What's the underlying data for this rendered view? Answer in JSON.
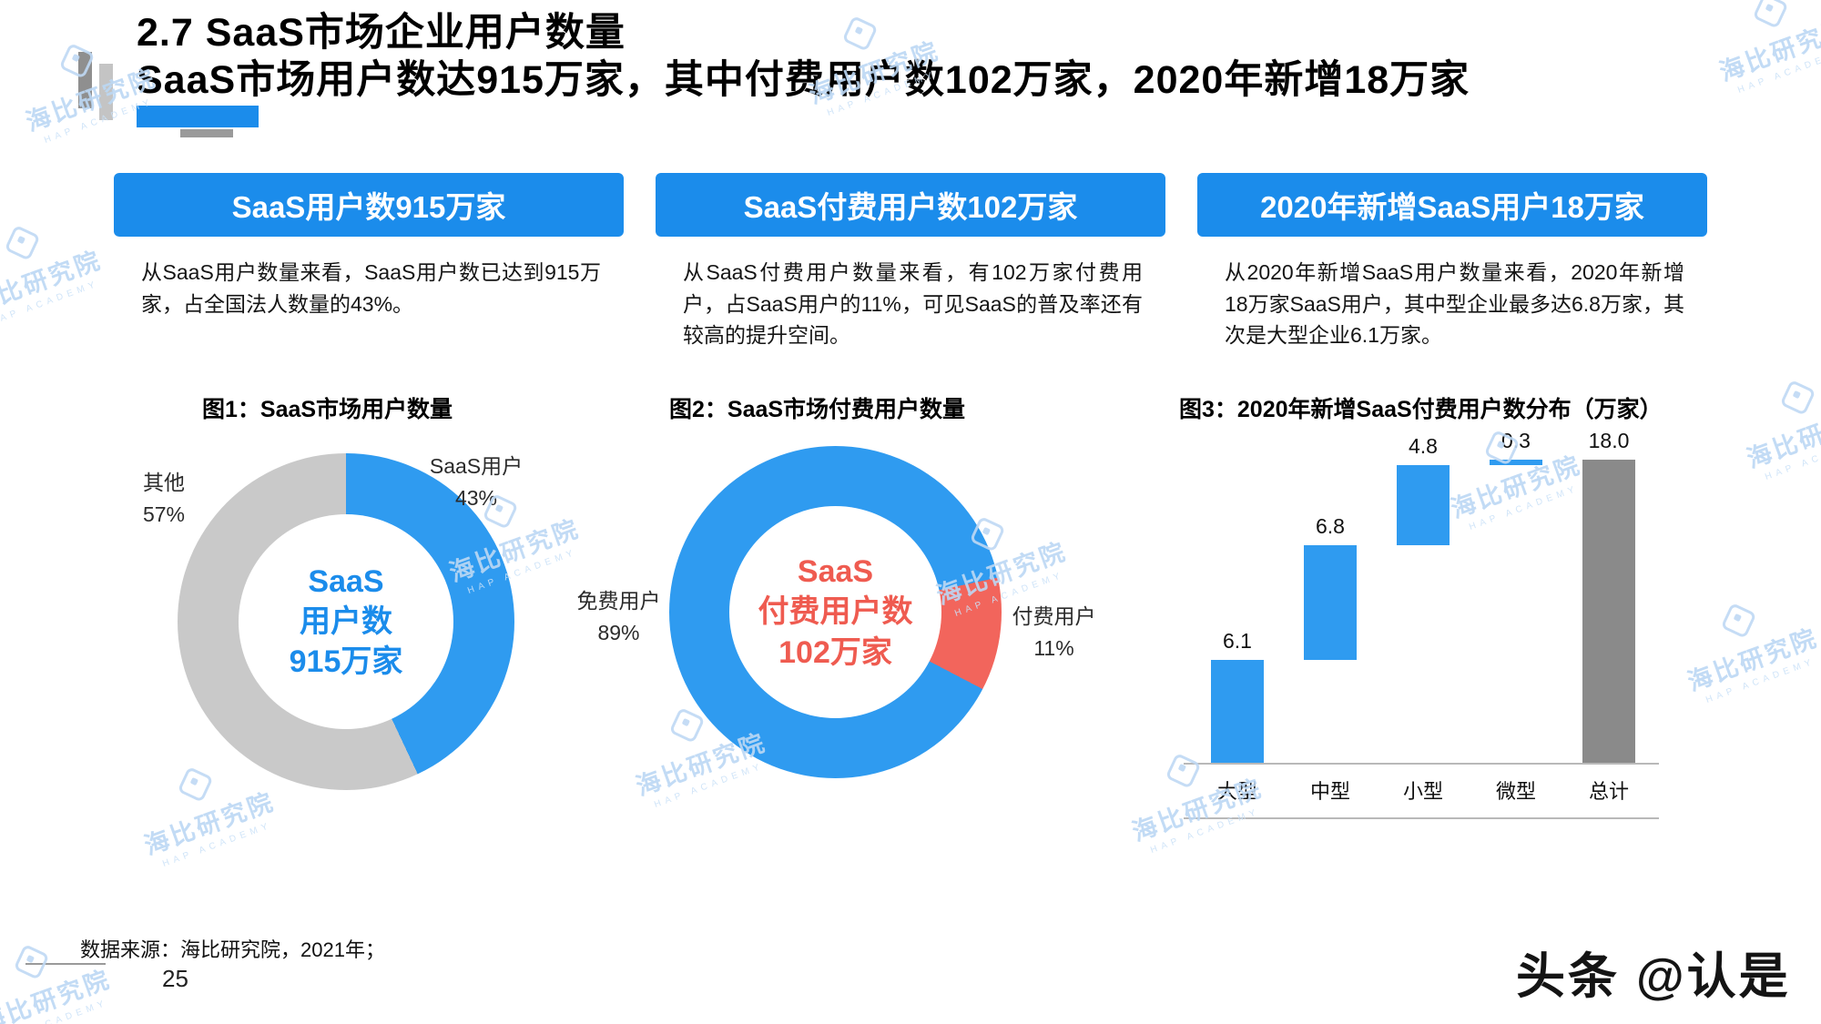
{
  "page": {
    "title_line1": "2.7 SaaS市场企业用户数量",
    "title_line2": "SaaS市场用户数达915万家，其中付费用户数102万家，2020年新增18万家",
    "footer_source": "数据来源：海比研究院，2021年；",
    "page_number": "25",
    "credit": "头条 @认是"
  },
  "watermark": {
    "text": "海比研究院",
    "sub": "HAP ACADEMY"
  },
  "columns": [
    {
      "header": "SaaS用户数915万家",
      "body": "从SaaS用户数量来看，SaaS用户数已达到915万家，占全国法人数量的43%。"
    },
    {
      "header": "SaaS付费用户数102万家",
      "body": "从SaaS付费用户数量来看，有102万家付费用户，占SaaS用户的11%，可见SaaS的普及率还有较高的提升空间。"
    },
    {
      "header": "2020年新增SaaS用户18万家",
      "body": "从2020年新增SaaS用户数量来看，2020年新增18万家SaaS用户，其中型企业最多达6.8万家，其次是大型企业6.1万家。"
    }
  ],
  "theme": {
    "accent_blue": "#2F9BF0",
    "header_blue": "#1B8CEB",
    "coral": "#F2655C",
    "gray_segment": "#C9C9C9",
    "bar_gray": "#8A8A8A"
  },
  "chart_data": [
    {
      "type": "pie",
      "subtype": "donut",
      "title": "图1：SaaS市场用户数量",
      "center_lines": [
        "SaaS",
        "用户数",
        "915万家"
      ],
      "center_color": "#1B8CEB",
      "start_angle_deg": 0,
      "segments": [
        {
          "label": "SaaS用户",
          "value_pct": 43,
          "pct_label": "43%",
          "color": "#2F9BF0"
        },
        {
          "label": "其他",
          "value_pct": 57,
          "pct_label": "57%",
          "color": "#C9C9C9"
        }
      ]
    },
    {
      "type": "pie",
      "subtype": "donut",
      "title": "图2：SaaS市场付费用户数量",
      "center_lines": [
        "SaaS",
        "付费用户数",
        "102万家"
      ],
      "center_color": "#EF5B50",
      "start_angle_deg": 78,
      "segments": [
        {
          "label": "付费用户",
          "value_pct": 11,
          "pct_label": "11%",
          "color": "#F2655C"
        },
        {
          "label": "免费用户",
          "value_pct": 89,
          "pct_label": "89%",
          "color": "#2F9BF0"
        }
      ]
    },
    {
      "type": "bar",
      "subtype": "waterfall",
      "title": "图3：2020年新增SaaS付费用户数分布（万家）",
      "categories": [
        "大型",
        "中型",
        "小型",
        "微型",
        "总计"
      ],
      "values": [
        6.1,
        6.8,
        4.8,
        0.3,
        18.0
      ],
      "value_labels": [
        "6.1",
        "6.8",
        "4.8",
        "0.3",
        "18.0"
      ],
      "totals": [
        false,
        false,
        false,
        false,
        true
      ],
      "ylim": [
        0,
        18
      ],
      "grid": false,
      "legend": "none"
    }
  ]
}
